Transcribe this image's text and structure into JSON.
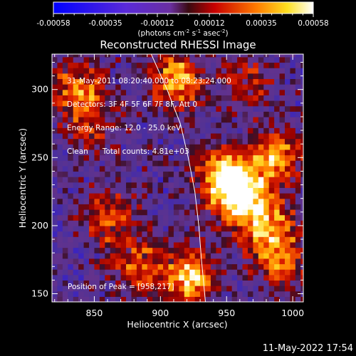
{
  "chart_data": {
    "type": "heatmap",
    "title": "Reconstructed RHESSI Image",
    "xlabel": "Heliocentric X (arcsec)",
    "ylabel": "Heliocentric Y (arcsec)",
    "xlim": [
      818,
      1008
    ],
    "ylim": [
      144,
      326
    ],
    "xticks": [
      850,
      900,
      950,
      1000
    ],
    "yticks": [
      150,
      200,
      250,
      300
    ],
    "colorbar": {
      "ticks": [
        "-0.00058",
        "-0.00035",
        "-0.00012",
        "0.00012",
        "0.00035",
        "0.00058"
      ],
      "range": [
        -0.00058,
        0.00058
      ],
      "units_line1": "(photons cm",
      "units_sup1": "-2",
      "units_mid": " s",
      "units_sup2": "-1",
      "units_mid2": " asec",
      "units_sup3": "-2",
      "units_end": ")"
    },
    "info_lines": [
      "31-May-2011 08:20:40.000 to 08:23:24.000",
      "Detectors: 3F 4F 5F 6F 7F 8F, Att 0",
      "Energy Range: 12.0 - 25.0 keV",
      "Clean      Total counts: 4.81e+03"
    ],
    "peak_label": "Position of Peak = [958,217]",
    "peak": [
      958,
      217
    ],
    "limb_curve": [
      [
        893,
        326
      ],
      [
        905,
        300
      ],
      [
        915,
        275
      ],
      [
        921,
        250
      ],
      [
        926,
        225
      ],
      [
        929,
        200
      ],
      [
        931,
        175
      ],
      [
        934,
        144
      ]
    ],
    "bright_sources": [
      {
        "x": 960,
        "y": 220,
        "value": 1.0
      },
      {
        "x": 945,
        "y": 235,
        "value": 0.75
      },
      {
        "x": 980,
        "y": 195,
        "value": 0.7
      },
      {
        "x": 985,
        "y": 250,
        "value": 0.7
      },
      {
        "x": 910,
        "y": 305,
        "value": 0.75
      },
      {
        "x": 920,
        "y": 160,
        "value": 0.8
      },
      {
        "x": 880,
        "y": 170,
        "value": 0.5
      },
      {
        "x": 860,
        "y": 205,
        "value": 0.5
      },
      {
        "x": 835,
        "y": 300,
        "value": 0.55
      },
      {
        "x": 845,
        "y": 275,
        "value": 0.4
      },
      {
        "x": 990,
        "y": 170,
        "value": 0.5
      },
      {
        "x": 965,
        "y": 305,
        "value": 0.4
      }
    ]
  },
  "footer": {
    "date": "11-May-2022 17:54"
  }
}
